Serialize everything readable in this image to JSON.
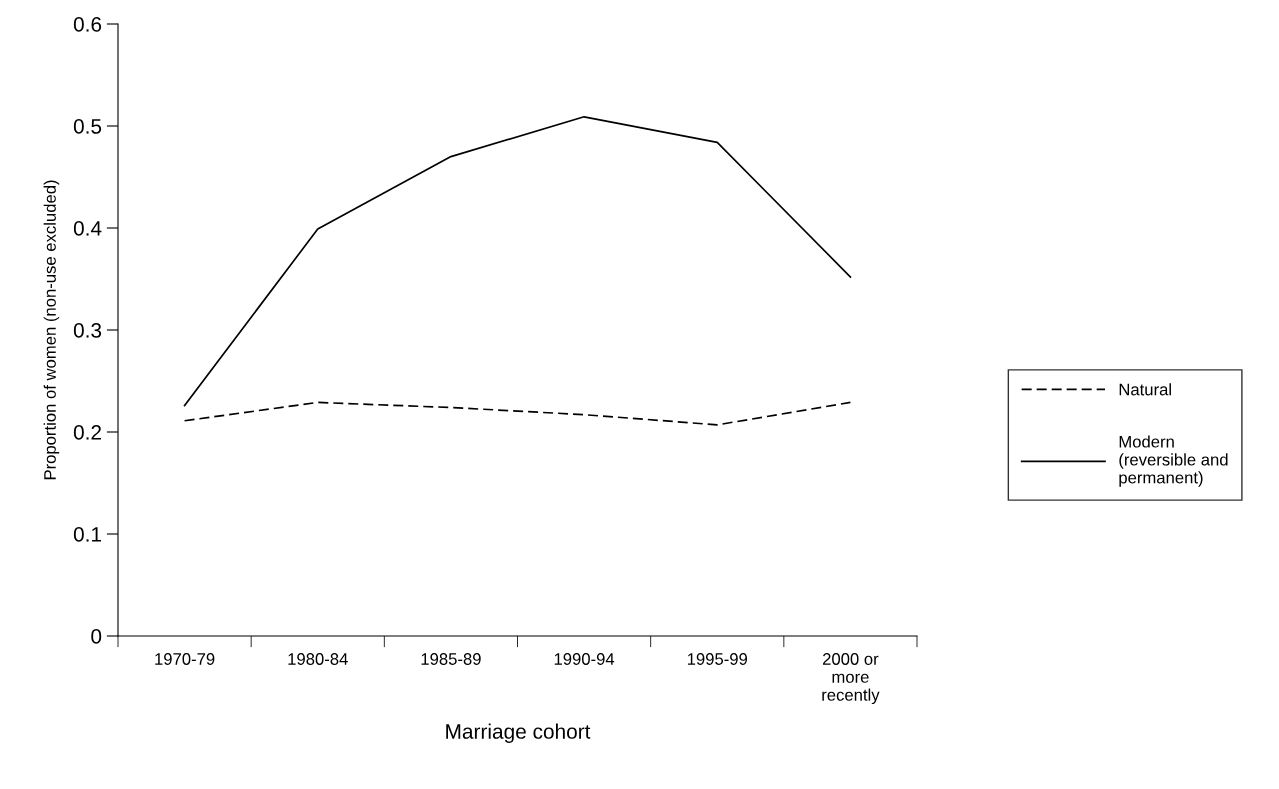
{
  "chart_data": {
    "type": "line",
    "xlabel": "Marriage cohort",
    "ylabel": "Proportion of women (non-use excluded)",
    "categories": [
      "1970-79",
      "1980-84",
      "1985-89",
      "1990-94",
      "1995-99",
      "2000 or\nmore\nrecently"
    ],
    "series": [
      {
        "name": "Natural",
        "color": "#000000",
        "line_style": "dashed",
        "values": [
          0.211,
          0.229,
          0.224,
          0.217,
          0.207,
          0.229
        ]
      },
      {
        "name": "Modern\n(reversible and\npermanent)",
        "color": "#000000",
        "line_style": "solid",
        "values": [
          0.226,
          0.399,
          0.47,
          0.509,
          0.484,
          0.352
        ]
      }
    ],
    "ylim": [
      0,
      0.6
    ],
    "yticks": [
      0,
      0.1,
      0.2,
      0.3,
      0.4,
      0.5,
      0.6
    ],
    "grid": false,
    "legend": "right",
    "marker": "none"
  }
}
